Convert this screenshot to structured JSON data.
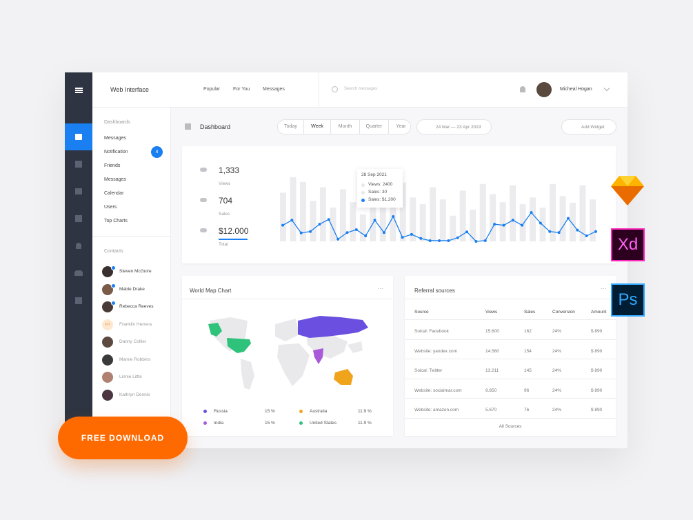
{
  "brand": "Web Interface",
  "nav": [
    "Popular",
    "For You",
    "Messages"
  ],
  "search_placeholder": "Search messages",
  "user": "Micheal Hogan",
  "sidebar": {
    "section": "Dashboards",
    "items": [
      "Messages",
      "Notification",
      "Friends",
      "Messages",
      "Calendar",
      "Users",
      "Top Charts"
    ],
    "badge": 4,
    "contacts_title": "Contacts",
    "contacts": [
      {
        "name": "Steven McGuire",
        "online": true
      },
      {
        "name": "Mable Drake",
        "online": true
      },
      {
        "name": "Rebecca Reeves",
        "online": true
      },
      {
        "name": "Franklin Herrera",
        "initials": "FH"
      },
      {
        "name": "Danny Collier"
      },
      {
        "name": "Mamie Robbins"
      },
      {
        "name": "Linnie Little"
      },
      {
        "name": "Kathryn Dennis"
      }
    ]
  },
  "toolbar": {
    "title": "Dashboard",
    "ranges": [
      "Today",
      "Week",
      "Month",
      "Quarter",
      "Year"
    ],
    "date": "24 Mar — 23 Apr 2019",
    "add": "Add Widget"
  },
  "stats": [
    {
      "value": "1,333",
      "label": "Views"
    },
    {
      "value": "704",
      "label": "Sales"
    },
    {
      "value": "$12.000",
      "label": "Total"
    }
  ],
  "tooltip": {
    "date": "28 Sep 2021",
    "lines": [
      "Views: 2400",
      "Sales: 30",
      "Sales: $1.200"
    ]
  },
  "chart_data": {
    "type": "line",
    "ylim": [
      0,
      100
    ],
    "color": "#1a7ff0",
    "bar_color": "#ececef",
    "values": [
      44,
      58,
      23,
      27,
      47,
      60,
      6,
      24,
      32,
      15,
      58,
      24,
      68,
      11,
      19,
      8,
      2,
      2,
      2,
      10,
      26,
      0,
      2,
      47,
      44,
      58,
      44,
      79,
      50,
      27,
      24,
      63,
      31,
      15,
      27
    ],
    "bars": [
      72,
      95,
      88,
      60,
      80,
      50,
      77,
      58,
      40,
      70,
      92,
      75,
      87,
      65,
      55,
      80,
      62,
      38,
      75,
      47,
      85,
      70,
      58,
      83,
      55,
      65,
      50,
      85,
      67,
      57,
      83,
      62
    ]
  },
  "world_map": {
    "title": "World Map Chart",
    "legend": [
      {
        "name": "Russia",
        "value": "15 %",
        "color": "#6a4fe0"
      },
      {
        "name": "India",
        "value": "15 %",
        "color": "#a95ad8"
      },
      {
        "name": "Australia",
        "value": "11.9 %",
        "color": "#f0a41c"
      },
      {
        "name": "United States",
        "value": "11.9 %",
        "color": "#2ec27a"
      }
    ]
  },
  "referral": {
    "title": "Referral sources",
    "columns": [
      "Source",
      "Views",
      "Sales",
      "Conversion",
      "Amount"
    ],
    "rows": [
      [
        "Soical: Facebook",
        "15.600",
        "162",
        "24%",
        "$ 890"
      ],
      [
        "Website: yandex.com",
        "14.560",
        "154",
        "24%",
        "$ 890"
      ],
      [
        "Soical: Twitter",
        "13.211",
        "145",
        "24%",
        "$ 890"
      ],
      [
        "Website: socialmar.com",
        "9.850",
        "96",
        "24%",
        "$ 890"
      ],
      [
        "Website: amazon.com",
        "5.670",
        "76",
        "24%",
        "$ 890"
      ]
    ],
    "footer": "All Sources"
  },
  "cta": "FREE DOWNLOAD",
  "apps": [
    "Xd",
    "Ps"
  ]
}
